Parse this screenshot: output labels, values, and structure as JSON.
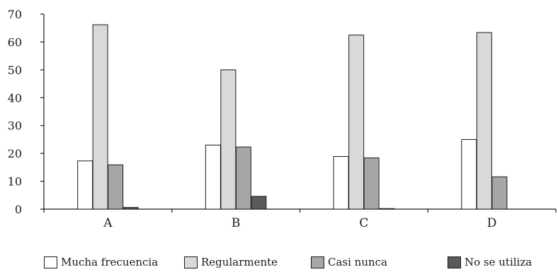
{
  "chart_data": {
    "type": "bar",
    "title": "",
    "xlabel": "",
    "ylabel": "",
    "categories": [
      "A",
      "B",
      "C",
      "D"
    ],
    "ylim": [
      0,
      70
    ],
    "yticks": [
      "0",
      "10",
      "20",
      "30",
      "40",
      "50",
      "60",
      "70"
    ],
    "grid": false,
    "legend_position": "bottom",
    "series": [
      {
        "name": "Mucha frecuencia",
        "color": "#ffffff",
        "values": [
          17.3,
          23,
          18.9,
          25
        ]
      },
      {
        "name": "Regularmente",
        "color": "#d9d9d9",
        "values": [
          66.2,
          50,
          62.5,
          63.4
        ]
      },
      {
        "name": "Casi nunca",
        "color": "#a6a6a6",
        "values": [
          15.9,
          22.3,
          18.4,
          11.6
        ]
      },
      {
        "name": "No se utiliza",
        "color": "#5a5a5a",
        "values": [
          0.6,
          4.6,
          0.2,
          0
        ]
      }
    ]
  }
}
